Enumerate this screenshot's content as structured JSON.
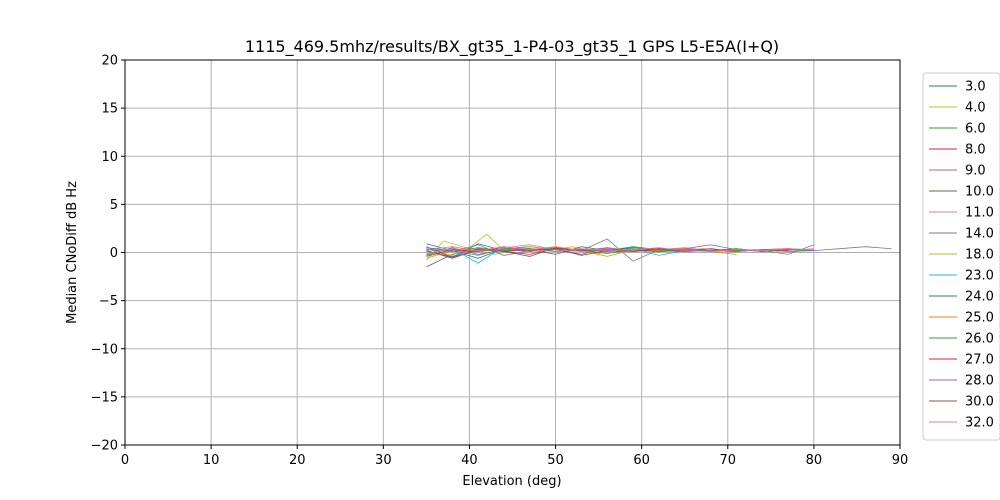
{
  "chart_data": {
    "type": "line",
    "title": "1115_469.5mhz/results/BX_gt35_1-P4-03_gt35_1 GPS L5-E5A(I+Q)",
    "xlabel": "Elevation (deg)",
    "ylabel": "Median CNoDiff dB Hz",
    "xlim": [
      0,
      90
    ],
    "ylim": [
      -20,
      20
    ],
    "xticks": [
      0,
      10,
      20,
      30,
      40,
      50,
      60,
      70,
      80,
      90
    ],
    "yticks": [
      -20,
      -15,
      -10,
      -5,
      0,
      5,
      10,
      15,
      20
    ],
    "grid": true,
    "legend_position": "right",
    "series": [
      {
        "name": "3.0",
        "color": "#1f77b4",
        "x": [
          35,
          38,
          41,
          44,
          47,
          50,
          53,
          56,
          59,
          62,
          65,
          68,
          71,
          74,
          77,
          80
        ],
        "y": [
          0.9,
          0.2,
          -0.6,
          0.4,
          0.6,
          0.3,
          -0.2,
          0.5,
          0.1,
          0.3,
          0.4,
          0.2,
          0.3,
          0.1,
          0.4,
          0.2
        ]
      },
      {
        "name": "4.0",
        "color": "#bcbd22",
        "x": [
          35,
          37,
          40,
          43,
          46,
          49,
          52,
          55,
          58,
          61,
          64,
          67,
          70,
          73,
          76
        ],
        "y": [
          -0.8,
          1.2,
          0.4,
          -0.2,
          0.5,
          0.2,
          0.6,
          -0.1,
          0.4,
          0.3,
          0.1,
          0.4,
          0.2,
          0.3,
          0.1
        ]
      },
      {
        "name": "6.0",
        "color": "#2ca02c",
        "x": [
          35,
          38,
          41,
          44,
          47,
          50,
          53,
          56,
          59,
          62,
          65,
          68,
          71,
          74,
          77,
          80
        ],
        "y": [
          -0.3,
          0.5,
          -0.2,
          0.3,
          0.1,
          0.4,
          0.2,
          -0.1,
          0.3,
          0.2,
          0.4,
          0.1,
          0.2,
          0.3,
          0.1,
          0.2
        ]
      },
      {
        "name": "8.0",
        "color": "#d62728",
        "x": [
          35,
          38,
          41,
          44,
          47,
          50,
          53,
          56,
          59,
          62,
          65,
          68,
          71,
          74,
          77,
          80
        ],
        "y": [
          0.2,
          -0.5,
          0.3,
          0.1,
          -0.2,
          0.4,
          0.3,
          0.1,
          0.2,
          0.4,
          0.3,
          0.2,
          0.1,
          0.3,
          0.4,
          0.2
        ]
      },
      {
        "name": "9.0",
        "color": "#9467bd",
        "x": [
          35,
          38,
          41,
          44,
          47,
          50,
          53,
          56,
          59,
          62,
          65,
          68,
          71,
          74,
          77,
          80,
          83,
          86,
          89
        ],
        "y": [
          0.5,
          0.1,
          0.8,
          -0.3,
          0.2,
          0.5,
          0.1,
          0.3,
          0.2,
          0.1,
          0.3,
          0.2,
          0.4,
          0.1,
          0.3,
          0.2,
          0.4,
          0.6,
          0.4
        ]
      },
      {
        "name": "10.0",
        "color": "#8c564b",
        "x": [
          35,
          38,
          41,
          44,
          47,
          50,
          53,
          56,
          59,
          62,
          65,
          68
        ],
        "y": [
          -1.5,
          -0.2,
          0.4,
          0.1,
          0.3,
          -0.2,
          0.6,
          0.2,
          0.1,
          0.4,
          0.3,
          0.2
        ]
      },
      {
        "name": "11.0",
        "color": "#e377c2",
        "x": [
          35,
          38,
          41,
          44,
          47,
          50,
          53,
          56,
          59,
          62,
          65,
          68,
          71,
          74,
          77,
          80
        ],
        "y": [
          0.3,
          0.6,
          0.2,
          0.5,
          0.8,
          0.3,
          0.1,
          0.4,
          0.2,
          0.3,
          0.5,
          0.2,
          0.1,
          0.3,
          0.2,
          0.4
        ]
      },
      {
        "name": "14.0",
        "color": "#7f7f7f",
        "x": [
          35,
          38,
          41,
          44,
          47,
          50,
          53,
          56,
          59,
          62,
          65,
          68,
          71,
          74,
          77,
          80
        ],
        "y": [
          0.1,
          -0.4,
          0.2,
          0.3,
          0.4,
          0.1,
          0.2,
          1.4,
          -0.9,
          0.3,
          0.4,
          0.8,
          0.3,
          0.2,
          -0.2,
          0.8
        ]
      },
      {
        "name": "18.0",
        "color": "#bcbd22",
        "x": [
          35,
          38,
          40,
          42,
          44,
          47,
          50,
          53,
          56,
          59,
          62
        ],
        "y": [
          0.4,
          -0.3,
          0.5,
          1.9,
          0.2,
          0.6,
          0.3,
          0.1,
          0.5,
          0.2,
          0.3
        ]
      },
      {
        "name": "23.0",
        "color": "#17becf",
        "x": [
          35,
          38,
          41,
          44,
          47,
          50,
          53,
          56,
          59,
          62,
          65
        ],
        "y": [
          -0.2,
          0.4,
          -1.1,
          0.6,
          0.3,
          0.5,
          0.2,
          0.1,
          0.4,
          -0.3,
          0.2
        ]
      },
      {
        "name": "24.0",
        "color": "#1f77b4",
        "x": [
          35,
          38,
          41,
          44,
          47,
          50,
          53,
          56,
          59,
          62,
          65,
          68
        ],
        "y": [
          0.6,
          -0.5,
          0.9,
          0.2,
          0.4,
          0.1,
          0.3,
          0.2,
          0.5,
          0.3,
          0.1,
          0.2
        ]
      },
      {
        "name": "25.0",
        "color": "#ff7f0e",
        "x": [
          35,
          38,
          41,
          44,
          47,
          50,
          53,
          56,
          59,
          62,
          65,
          68,
          71
        ],
        "y": [
          -0.6,
          0.2,
          0.1,
          0.4,
          0.3,
          0.6,
          0.2,
          -0.4,
          0.3,
          0.2,
          0.4,
          0.1,
          -0.2
        ]
      },
      {
        "name": "26.0",
        "color": "#2ca02c",
        "x": [
          35,
          38,
          41,
          44,
          47,
          50,
          53,
          56,
          59,
          62,
          65,
          68,
          71,
          74,
          77,
          80
        ],
        "y": [
          0.3,
          0.1,
          0.5,
          0.2,
          0.4,
          0.1,
          0.3,
          0.2,
          0.6,
          0.3,
          0.1,
          0.2,
          0.4,
          0.1,
          0.3,
          0.2
        ]
      },
      {
        "name": "27.0",
        "color": "#d62728",
        "x": [
          35,
          38,
          41,
          44,
          47,
          50,
          53,
          56,
          59,
          62,
          65,
          68,
          71,
          74,
          77
        ],
        "y": [
          -0.4,
          0.3,
          0.1,
          0.6,
          0.2,
          0.4,
          -0.3,
          0.2,
          0.3,
          0.1,
          0.2,
          0.4,
          0.1,
          0.3,
          0.2
        ]
      },
      {
        "name": "28.0",
        "color": "#9467bd",
        "x": [
          35,
          38,
          41,
          44,
          47,
          50,
          53,
          56,
          59,
          62,
          65,
          68,
          71,
          74,
          77,
          80
        ],
        "y": [
          0.5,
          0.2,
          -0.3,
          0.4,
          0.1,
          0.3,
          0.2,
          0.5,
          0.1,
          0.4,
          0.3,
          0.2,
          0.1,
          0.3,
          0.4,
          0.2
        ]
      },
      {
        "name": "30.0",
        "color": "#8c564b",
        "x": [
          35,
          38,
          41,
          44,
          47,
          50,
          53,
          56,
          59,
          62,
          65
        ],
        "y": [
          0.2,
          -0.6,
          0.3,
          0.1,
          -0.4,
          0.5,
          0.2,
          0.3,
          0.1,
          0.4,
          0.2
        ]
      },
      {
        "name": "32.0",
        "color": "#e377c2",
        "x": [
          35,
          38,
          41,
          44,
          47,
          50,
          53,
          56,
          59,
          62,
          65,
          68,
          71,
          74,
          77,
          80
        ],
        "y": [
          -0.1,
          0.4,
          0.2,
          0.6,
          0.3,
          0.1,
          0.4,
          0.2,
          0.3,
          0.5,
          0.2,
          0.1,
          0.3,
          0.2,
          0.4,
          0.3
        ]
      }
    ]
  }
}
